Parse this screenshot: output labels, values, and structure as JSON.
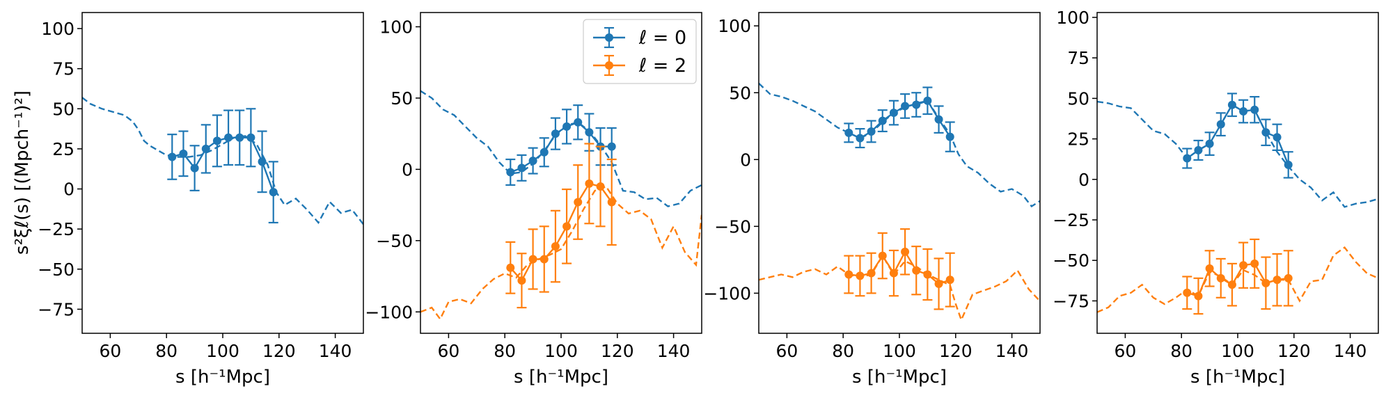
{
  "figure": {
    "ylabel": "s²ξℓ(s) [(Mpch⁻¹)²]",
    "xlabel": "s [h⁻¹Mpc]"
  },
  "legend": {
    "panel": 1,
    "entries": [
      {
        "label": "ℓ = 0",
        "color": "#1f77b4"
      },
      {
        "label": "ℓ = 2",
        "color": "#ff7f0e"
      }
    ]
  },
  "chart_data": [
    {
      "type": "line",
      "xlim": [
        50,
        150
      ],
      "ylim": [
        -90,
        110
      ],
      "xticks": [
        60,
        80,
        100,
        120,
        140
      ],
      "yticks": [
        100,
        75,
        50,
        25,
        0,
        -25,
        -50,
        -75
      ],
      "ylabel": "s²ξℓ(s) [(Mpch⁻¹)²]",
      "xlabel": "s [h⁻¹Mpc]",
      "series": [
        {
          "name": "ℓ = 0 model",
          "color": "#1f77b4",
          "style": "dashed",
          "x": [
            50,
            53,
            57,
            61,
            65,
            68,
            70,
            72,
            74,
            77,
            80,
            84,
            88,
            92,
            96,
            100,
            104,
            108,
            112,
            116,
            119,
            122,
            126,
            130,
            134,
            138,
            142,
            146,
            150
          ],
          "y": [
            57,
            53,
            50,
            48,
            46,
            42,
            37,
            30,
            27,
            24,
            21,
            20,
            20,
            21,
            24,
            28,
            32,
            33,
            28,
            15,
            -2,
            -10,
            -6,
            -13,
            -21,
            -8,
            -15,
            -13,
            -22
          ]
        },
        {
          "name": "ℓ = 0",
          "color": "#1f77b4",
          "style": "errorbar",
          "x": [
            82,
            86,
            90,
            94,
            98,
            102,
            106,
            110,
            114,
            118
          ],
          "y": [
            20,
            22,
            13,
            25,
            30,
            32,
            32,
            32,
            17,
            -2
          ],
          "err": [
            14,
            14,
            14,
            15,
            16,
            17,
            17,
            18,
            19,
            19
          ]
        }
      ]
    },
    {
      "type": "line",
      "xlim": [
        50,
        150
      ],
      "ylim": [
        -115,
        110
      ],
      "xticks": [
        60,
        80,
        100,
        120,
        140
      ],
      "yticks": [
        100,
        50,
        0,
        -50,
        -100
      ],
      "xlabel": "s [h⁻¹Mpc]",
      "series": [
        {
          "name": "ℓ = 0 model",
          "color": "#1f77b4",
          "style": "dashed",
          "x": [
            50,
            54,
            58,
            62,
            66,
            70,
            74,
            78,
            82,
            86,
            90,
            94,
            98,
            102,
            106,
            110,
            114,
            118,
            122,
            126,
            130,
            134,
            138,
            142,
            146,
            150
          ],
          "y": [
            55,
            50,
            42,
            38,
            30,
            22,
            16,
            5,
            -3,
            -2,
            4,
            13,
            24,
            31,
            33,
            27,
            17,
            5,
            -15,
            -16,
            -21,
            -20,
            -26,
            -24,
            -15,
            -11
          ]
        },
        {
          "name": "ℓ = 0",
          "color": "#1f77b4",
          "style": "errorbar",
          "x": [
            82,
            86,
            90,
            94,
            98,
            102,
            106,
            110,
            114,
            118
          ],
          "y": [
            -2,
            1,
            6,
            12,
            25,
            30,
            33,
            26,
            16,
            16
          ],
          "err": [
            9,
            9,
            9,
            10,
            11,
            12,
            12,
            13,
            13,
            13
          ]
        },
        {
          "name": "ℓ = 2 model",
          "color": "#ff7f0e",
          "style": "dashed",
          "x": [
            50,
            54,
            57,
            60,
            64,
            68,
            72,
            76,
            80,
            84,
            88,
            92,
            96,
            100,
            104,
            108,
            112,
            116,
            120,
            124,
            128,
            132,
            136,
            140,
            144,
            148,
            150
          ],
          "y": [
            -100,
            -97,
            -105,
            -93,
            -91,
            -94,
            -84,
            -77,
            -73,
            -76,
            -67,
            -63,
            -60,
            -56,
            -43,
            -28,
            -15,
            -12,
            -24,
            -31,
            -29,
            -35,
            -55,
            -40,
            -58,
            -67,
            -32
          ]
        },
        {
          "name": "ℓ = 2",
          "color": "#ff7f0e",
          "style": "errorbar",
          "x": [
            82,
            86,
            90,
            94,
            98,
            102,
            106,
            110,
            114,
            118
          ],
          "y": [
            -69,
            -78,
            -63,
            -63,
            -54,
            -40,
            -23,
            -10,
            -12,
            -23
          ],
          "err": [
            18,
            19,
            21,
            23,
            25,
            26,
            26,
            28,
            28,
            30
          ]
        }
      ]
    },
    {
      "type": "line",
      "xlim": [
        50,
        150
      ],
      "ylim": [
        -130,
        110
      ],
      "xticks": [
        60,
        80,
        100,
        120,
        140
      ],
      "yticks": [
        100,
        50,
        0,
        -50,
        -100
      ],
      "xlabel": "s [h⁻¹Mpc]",
      "series": [
        {
          "name": "ℓ = 0 model",
          "color": "#1f77b4",
          "style": "dashed",
          "x": [
            50,
            54,
            58,
            62,
            66,
            70,
            74,
            78,
            82,
            86,
            90,
            94,
            98,
            102,
            106,
            110,
            114,
            118,
            121,
            124,
            128,
            132,
            136,
            140,
            144,
            147,
            150
          ],
          "y": [
            57,
            49,
            47,
            44,
            40,
            36,
            30,
            24,
            20,
            16,
            20,
            28,
            35,
            39,
            42,
            44,
            31,
            19,
            4,
            -5,
            -10,
            -18,
            -24,
            -22,
            -27,
            -35,
            -31
          ]
        },
        {
          "name": "ℓ = 0",
          "color": "#1f77b4",
          "style": "errorbar",
          "x": [
            82,
            86,
            90,
            94,
            98,
            102,
            106,
            110,
            114,
            118
          ],
          "y": [
            20,
            16,
            21,
            29,
            35,
            40,
            41,
            44,
            30,
            17
          ],
          "err": [
            7,
            7,
            8,
            8,
            9,
            9,
            9,
            10,
            10,
            11
          ]
        },
        {
          "name": "ℓ = 2 model",
          "color": "#ff7f0e",
          "style": "dashed",
          "x": [
            50,
            54,
            58,
            62,
            66,
            70,
            74,
            78,
            82,
            86,
            90,
            94,
            98,
            102,
            106,
            110,
            114,
            118,
            120,
            122,
            126,
            130,
            134,
            138,
            142,
            146,
            150
          ],
          "y": [
            -90,
            -88,
            -86,
            -88,
            -84,
            -82,
            -86,
            -80,
            -86,
            -88,
            -86,
            -72,
            -86,
            -76,
            -80,
            -86,
            -90,
            -94,
            -108,
            -120,
            -101,
            -98,
            -95,
            -91,
            -83,
            -97,
            -106
          ],
          "note": "dashed orange baseline"
        },
        {
          "name": "ℓ = 2",
          "color": "#ff7f0e",
          "style": "errorbar",
          "x": [
            82,
            86,
            90,
            94,
            98,
            102,
            106,
            110,
            114,
            118
          ],
          "y": [
            -86,
            -87,
            -85,
            -72,
            -85,
            -69,
            -83,
            -86,
            -93,
            -90
          ],
          "err": [
            14,
            15,
            15,
            17,
            17,
            17,
            18,
            19,
            19,
            20
          ]
        }
      ]
    },
    {
      "type": "line",
      "xlim": [
        50,
        150
      ],
      "ylim": [
        -95,
        103
      ],
      "xticks": [
        60,
        80,
        100,
        120,
        140
      ],
      "yticks": [
        100,
        75,
        50,
        25,
        0,
        -25,
        -50,
        -75
      ],
      "xlabel": "s [h⁻¹Mpc]",
      "series": [
        {
          "name": "ℓ = 0 model",
          "color": "#1f77b4",
          "style": "dashed",
          "x": [
            50,
            54,
            58,
            62,
            66,
            70,
            74,
            78,
            82,
            86,
            90,
            94,
            98,
            102,
            106,
            110,
            114,
            118,
            122,
            126,
            130,
            134,
            138,
            142,
            146,
            150
          ],
          "y": [
            48,
            47,
            45,
            44,
            37,
            30,
            28,
            22,
            13,
            18,
            22,
            34,
            46,
            42,
            43,
            29,
            17,
            8,
            0,
            -5,
            -13,
            -8,
            -17,
            -15,
            -14,
            -12
          ]
        },
        {
          "name": "ℓ = 0",
          "color": "#1f77b4",
          "style": "errorbar",
          "x": [
            82,
            86,
            90,
            94,
            98,
            102,
            106,
            110,
            114,
            118
          ],
          "y": [
            13,
            18,
            22,
            34,
            46,
            42,
            43,
            29,
            26,
            9
          ],
          "err": [
            6,
            6,
            7,
            7,
            7,
            7,
            8,
            8,
            8,
            8
          ]
        },
        {
          "name": "ℓ = 2 model",
          "color": "#ff7f0e",
          "style": "dashed",
          "x": [
            50,
            54,
            58,
            62,
            66,
            70,
            74,
            78,
            82,
            86,
            90,
            94,
            98,
            102,
            106,
            110,
            114,
            118,
            122,
            126,
            130,
            134,
            138,
            142,
            146,
            150
          ],
          "y": [
            -82,
            -79,
            -72,
            -70,
            -65,
            -73,
            -77,
            -73,
            -68,
            -72,
            -57,
            -60,
            -65,
            -56,
            -59,
            -64,
            -62,
            -62,
            -75,
            -63,
            -62,
            -47,
            -42,
            -51,
            -58,
            -61
          ]
        },
        {
          "name": "ℓ = 2",
          "color": "#ff7f0e",
          "style": "errorbar",
          "x": [
            82,
            86,
            90,
            94,
            98,
            102,
            106,
            110,
            114,
            118
          ],
          "y": [
            -70,
            -72,
            -55,
            -61,
            -65,
            -53,
            -52,
            -64,
            -62,
            -61
          ],
          "err": [
            10,
            11,
            11,
            12,
            13,
            14,
            15,
            16,
            16,
            17
          ]
        }
      ]
    }
  ]
}
